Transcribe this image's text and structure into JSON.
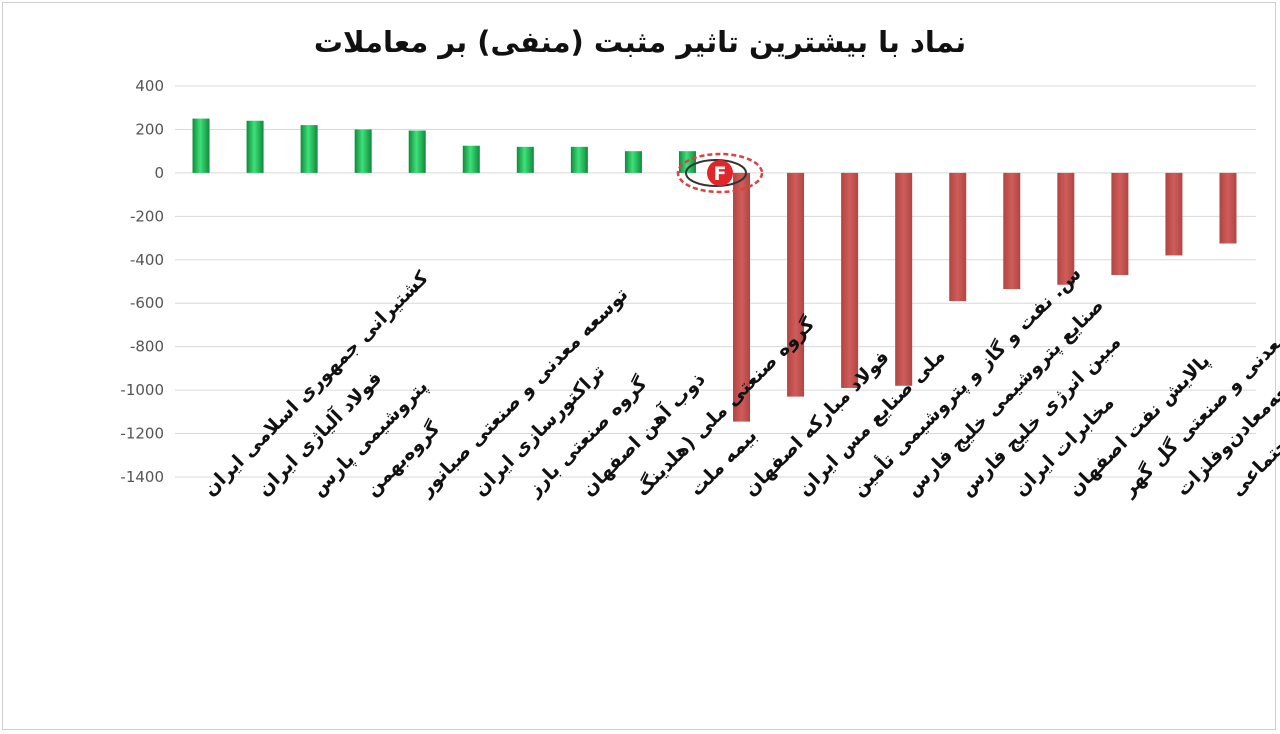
{
  "chart_data": {
    "type": "bar",
    "title": "نماد با بیشترین تاثیر مثبت (منفی) بر معاملات",
    "xlabel": "",
    "ylabel": "",
    "ylim": [
      -1400,
      400
    ],
    "yticks": [
      400,
      200,
      0,
      -200,
      -400,
      -600,
      -800,
      -1000,
      -1200,
      -1400
    ],
    "grid": true,
    "categories": [
      "کشتیرانی جمهوری اسلامی ایران",
      "فولاد آلیاژی ایران",
      "پتروشیمی پارس",
      "گروه‌بهمن",
      "توسعه معدنی و صنعتی صبانور",
      "تراکتورسازی ایران",
      "گروه صنعتی بارز",
      "ذوب آهن اصفهان",
      "گروه صنعتی ملی (هلدینگ",
      "بیمه ملت",
      "فولاد مبارکه اصفهان",
      "ملی صنایع مس ایران",
      "س. نفت و گاز و پتروشیمی تأمین",
      "صنایع پتروشیمی خلیج فارس",
      "مبین انرژی خلیج فارس",
      "مخابرات ایران",
      "پالایش نفت اصفهان",
      "معدنی و صنعتی گل گهر",
      "توسعه‌معادن‌وفلزات",
      "سرمایه گذاری تامین اجتماعی"
    ],
    "values": [
      250,
      240,
      220,
      200,
      195,
      125,
      120,
      120,
      100,
      100,
      -1145,
      -1030,
      -990,
      -980,
      -590,
      -535,
      -515,
      -470,
      -380,
      -325
    ],
    "colors": {
      "positive": "#1db954",
      "negative": "#c0504d"
    }
  },
  "watermark": {
    "letter": "F"
  }
}
